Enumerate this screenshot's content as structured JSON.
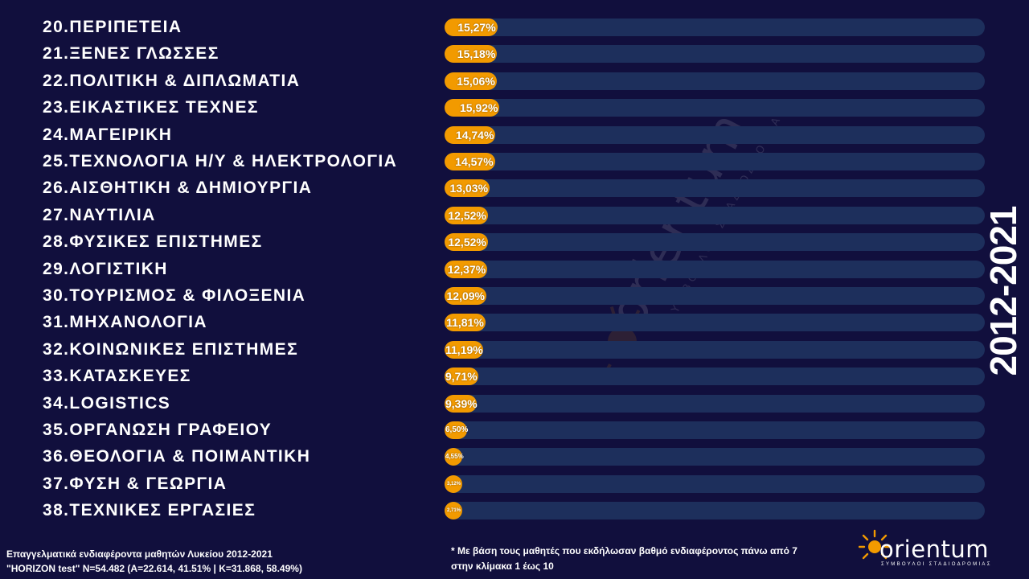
{
  "year_label": "2012-2021",
  "watermark": {
    "word": "orientum",
    "tagline": "ΣΥΜΒΟΥΛΟΙ ΣΤΑΔΙΟΔΡΟΜΙΑΣ"
  },
  "footer": {
    "line1": "Επαγγελματικά ενδιαφέροντα μαθητών Λυκείου 2012-2021",
    "line2": "\"HORIZON test\" N=54.482 (A=22.614, 41.51% | K=31.868, 58.49%)",
    "note": "* Με βάση τους μαθητές που εκδήλωσαν βαθμό ενδιαφέροντος πάνω από 7 στην κλίμακα 1 έως 10"
  },
  "logo": {
    "word": "orientum",
    "tagline": "ΣΥΜΒΟΥΛΟΙ ΣΤΑΔΙΟΔΡΟΜΙΑΣ"
  },
  "colors": {
    "background": "#110f3d",
    "bar": "#f29a00",
    "track": "#1d2f5c",
    "text": "#ffffff"
  },
  "chart_data": {
    "type": "bar",
    "orientation": "horizontal",
    "xlim": [
      0,
      100
    ],
    "categories": [
      "20.ΠΕΡΙΠΕΤΕΙΑ",
      "21.ΞΕΝΕΣ ΓΛΩΣΣΕΣ",
      "22.ΠΟΛΙΤΙΚΗ & ΔΙΠΛΩΜΑΤΙΑ",
      "23.ΕΙΚΑΣΤΙΚΕΣ ΤΕΧΝΕΣ",
      "24.ΜΑΓΕΙΡΙΚΗ",
      "25.ΤΕΧΝΟΛΟΓΙΑ Η/Υ & ΗΛΕΚΤΡΟΛΟΓΙΑ",
      "26.ΑΙΣΘΗΤΙΚΗ & ΔΗΜΙΟΥΡΓΙΑ",
      "27.ΝΑΥΤΙΛΙΑ",
      "28.ΦΥΣΙΚΕΣ ΕΠΙΣΤΗΜΕΣ",
      "29.ΛΟΓΙΣΤΙΚΗ",
      "30.ΤΟΥΡΙΣΜΟΣ & ΦΙΛΟΞΕΝΙΑ",
      "31.ΜΗΧΑΝΟΛΟΓΙΑ",
      "32.ΚΟΙΝΩΝΙΚΕΣ ΕΠΙΣΤΗΜΕΣ",
      "33.ΚΑΤΑΣΚΕΥΕΣ",
      "34.LOGISTICS",
      "35.ΟΡΓΑΝΩΣΗ ΓΡΑΦΕΙΟΥ",
      "36.ΘΕΟΛΟΓΙΑ & ΠΟΙΜΑΝΤΙΚΗ",
      "37.ΦΥΣΗ & ΓΕΩΡΓΙΑ",
      "38.ΤΕΧΝΙΚΕΣ ΕΡΓΑΣΙΕΣ"
    ],
    "values": [
      15.27,
      15.18,
      15.06,
      15.92,
      14.74,
      14.57,
      13.03,
      12.52,
      12.52,
      12.37,
      12.09,
      11.81,
      11.19,
      9.71,
      9.39,
      6.5,
      4.55,
      3.12,
      2.71
    ],
    "value_labels": [
      "15,27%",
      "15,18%",
      "15,06%",
      "15,92%",
      "14,74%",
      "14,57%",
      "13,03%",
      "12,52%",
      "12,52%",
      "12,37%",
      "12,09%",
      "11,81%",
      "11,19%",
      "9,71%",
      "9,39%",
      "6,50%",
      "4,55%",
      "3,12%",
      "2,71%"
    ]
  }
}
